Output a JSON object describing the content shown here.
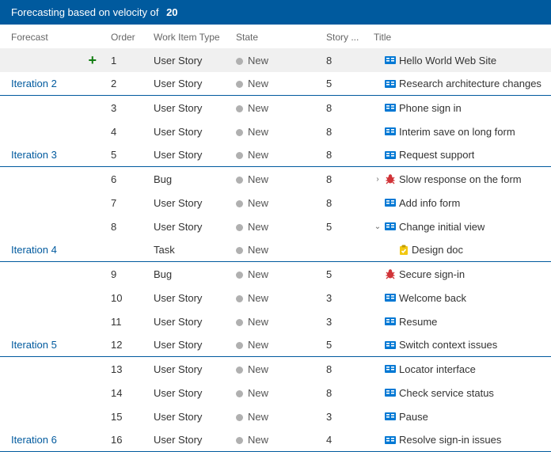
{
  "banner": {
    "prefix": "Forecasting based on velocity of",
    "velocity": "20"
  },
  "columns": {
    "forecast": "Forecast",
    "order": "Order",
    "type": "Work Item Type",
    "state": "State",
    "story": "Story ...",
    "title": "Title"
  },
  "icons": {
    "story_color": "#0078d4",
    "bug_color": "#d13438",
    "task_color": "#f2c811"
  },
  "rows": [
    {
      "shade": true,
      "plus": true,
      "forecast": "",
      "order": "1",
      "type": "User Story",
      "state": "New",
      "story": "8",
      "icon": "story",
      "title": "Hello World Web Site",
      "sep": false
    },
    {
      "forecast": "Iteration 2",
      "order": "2",
      "type": "User Story",
      "state": "New",
      "story": "5",
      "icon": "story",
      "title": "Research architecture changes",
      "sep": true
    },
    {
      "forecast": "",
      "order": "3",
      "type": "User Story",
      "state": "New",
      "story": "8",
      "icon": "story",
      "title": "Phone sign in",
      "sep": false
    },
    {
      "forecast": "",
      "order": "4",
      "type": "User Story",
      "state": "New",
      "story": "8",
      "icon": "story",
      "title": "Interim save on long form",
      "sep": false
    },
    {
      "forecast": "Iteration 3",
      "order": "5",
      "type": "User Story",
      "state": "New",
      "story": "8",
      "icon": "story",
      "title": "Request support",
      "sep": true
    },
    {
      "forecast": "",
      "order": "6",
      "type": "Bug",
      "state": "New",
      "story": "8",
      "chev": "right",
      "icon": "bug",
      "title": "Slow response on the form",
      "sep": false
    },
    {
      "forecast": "",
      "order": "7",
      "type": "User Story",
      "state": "New",
      "story": "8",
      "icon": "story",
      "title": "Add info form",
      "sep": false
    },
    {
      "forecast": "",
      "order": "8",
      "type": "User Story",
      "state": "New",
      "story": "5",
      "chev": "down",
      "icon": "story",
      "title": "Change initial view",
      "sep": false
    },
    {
      "forecast": "Iteration 4",
      "order": "",
      "type": "Task",
      "state": "New",
      "story": "",
      "indent": true,
      "icon": "task",
      "title": "Design doc",
      "sep": true
    },
    {
      "forecast": "",
      "order": "9",
      "type": "Bug",
      "state": "New",
      "story": "5",
      "icon": "bug",
      "title": "Secure sign-in",
      "sep": false
    },
    {
      "forecast": "",
      "order": "10",
      "type": "User Story",
      "state": "New",
      "story": "3",
      "icon": "story",
      "title": "Welcome back",
      "sep": false
    },
    {
      "forecast": "",
      "order": "11",
      "type": "User Story",
      "state": "New",
      "story": "3",
      "icon": "story",
      "title": "Resume",
      "sep": false
    },
    {
      "forecast": "Iteration 5",
      "order": "12",
      "type": "User Story",
      "state": "New",
      "story": "5",
      "icon": "story",
      "title": "Switch context issues",
      "sep": true
    },
    {
      "forecast": "",
      "order": "13",
      "type": "User Story",
      "state": "New",
      "story": "8",
      "icon": "story",
      "title": "Locator interface",
      "sep": false
    },
    {
      "forecast": "",
      "order": "14",
      "type": "User Story",
      "state": "New",
      "story": "8",
      "icon": "story",
      "title": "Check service status",
      "sep": false
    },
    {
      "forecast": "",
      "order": "15",
      "type": "User Story",
      "state": "New",
      "story": "3",
      "icon": "story",
      "title": "Pause",
      "sep": false
    },
    {
      "forecast": "Iteration 6",
      "order": "16",
      "type": "User Story",
      "state": "New",
      "story": "4",
      "icon": "story",
      "title": "Resolve sign-in issues",
      "sep": true
    }
  ]
}
